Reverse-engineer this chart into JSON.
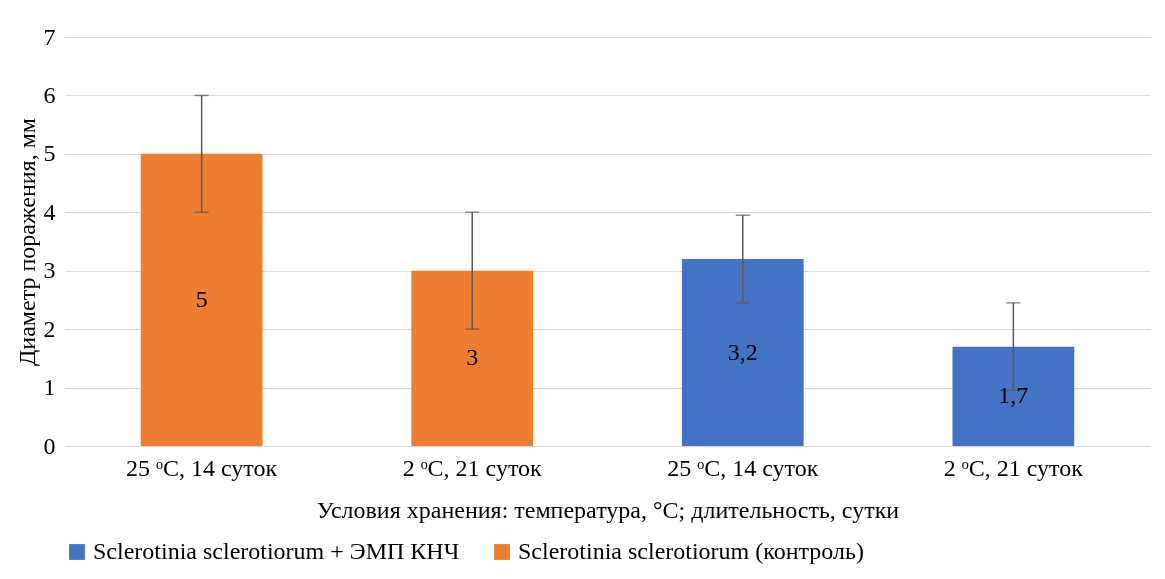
{
  "chart_data": {
    "type": "bar",
    "xlabel": "Условия хранения: температура, °C; длительность, сутки",
    "ylabel": "Диаметр поражения, мм",
    "categories": [
      "25 ᵒC, 14 суток",
      "2 ᵒC, 21 суток",
      "25 ᵒC, 14 суток",
      "2 ᵒC, 21 суток"
    ],
    "series": [
      {
        "name": "Sclerotinia sclerotiorum + ЭМП КНЧ",
        "color": "#4472c4",
        "values": [
          null,
          null,
          3.2,
          1.7
        ],
        "errors": [
          null,
          null,
          0.75,
          0.75
        ],
        "value_labels": [
          null,
          null,
          "3,2",
          "1,7"
        ]
      },
      {
        "name": "Sclerotinia sclerotiorum (контроль)",
        "color": "#ed7d31",
        "values": [
          5,
          3,
          null,
          null
        ],
        "errors": [
          1,
          1,
          null,
          null
        ],
        "value_labels": [
          "5",
          "3",
          null,
          null
        ]
      }
    ],
    "ylim": [
      0,
      7
    ],
    "yticks": [
      0,
      1,
      2,
      3,
      4,
      5,
      6,
      7
    ],
    "grid": "y",
    "legend": "bottom"
  }
}
